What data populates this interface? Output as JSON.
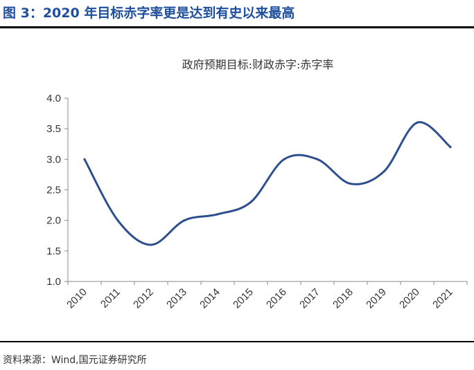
{
  "figure": {
    "title": "图 3：2020 年目标赤字率更是达到有史以来最高",
    "source": "资料来源：Wind,国元证券研究所",
    "title_color": "#1f4e9c"
  },
  "chart_data": {
    "type": "line",
    "title": "政府预期目标:财政赤字:赤字率",
    "xlabel": "",
    "ylabel": "",
    "x": [
      "2010",
      "2011",
      "2012",
      "2013",
      "2014",
      "2015",
      "2016",
      "2017",
      "2018",
      "2019",
      "2020",
      "2021"
    ],
    "series": [
      {
        "values": [
          3.0,
          2.0,
          1.6,
          2.0,
          2.1,
          2.3,
          3.0,
          3.0,
          2.6,
          2.8,
          3.6,
          3.2
        ],
        "color": "#2e4f8f"
      }
    ],
    "ylim": [
      1.0,
      4.0
    ],
    "yticks": [
      "1.0",
      "1.5",
      "2.0",
      "2.5",
      "3.0",
      "3.5",
      "4.0"
    ],
    "grid": false,
    "legend": "none"
  }
}
